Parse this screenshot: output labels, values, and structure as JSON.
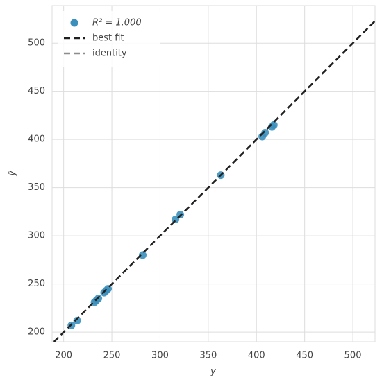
{
  "chart_data": {
    "type": "scatter",
    "xlabel": "y",
    "ylabel": "ŷ",
    "series": [
      {
        "name": "R² = 1.000",
        "color": "#3a8fbb",
        "x": [
          208,
          214,
          232,
          234,
          236,
          242,
          244,
          246,
          282,
          316,
          321,
          363,
          406,
          409,
          416,
          418
        ],
        "values": [
          207,
          212,
          231,
          233,
          235,
          241,
          243,
          245,
          280,
          317,
          322,
          363,
          403,
          407,
          413,
          415
        ]
      }
    ],
    "lines": [
      {
        "name": "best fit",
        "color": "#1f1f1f"
      },
      {
        "name": "identity",
        "color": "#8c8c8c"
      }
    ],
    "xlim": [
      188,
      523
    ],
    "ylim": [
      190,
      539
    ],
    "xticks": [
      200,
      250,
      300,
      350,
      400,
      450,
      500
    ],
    "yticks": [
      200,
      250,
      300,
      350,
      400,
      450,
      500
    ],
    "grid": true,
    "legend": "upper left"
  }
}
